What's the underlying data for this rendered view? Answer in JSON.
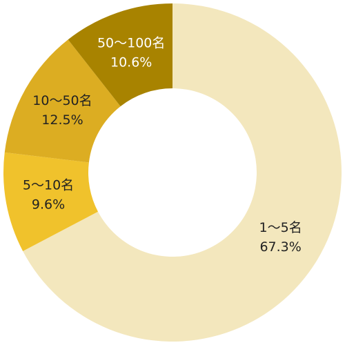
{
  "chart_data": {
    "type": "donut",
    "categories": [
      "1〜5名",
      "5〜10名",
      "10〜50名",
      "50〜100名"
    ],
    "values": [
      67.3,
      9.6,
      12.5,
      10.6
    ],
    "value_labels": [
      "67.3%",
      "9.6%",
      "12.5%",
      "10.6%"
    ],
    "colors": [
      "#f3e7bd",
      "#f0c22c",
      "#dcad22",
      "#a88300"
    ]
  }
}
